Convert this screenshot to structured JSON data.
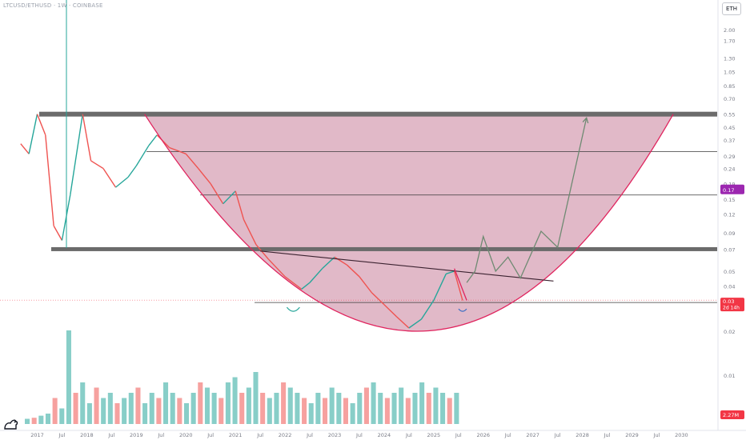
{
  "header": {
    "symbol_line": "LTCUSD/ETHUSD · 1W · COINBASE",
    "currency_button": "ETH"
  },
  "colors": {
    "bull": "#26a69a",
    "bear": "#ef5350",
    "fill": "#c9809a",
    "curve": "#e0245e",
    "grid_line": "#3a3a3a",
    "level_band": "#6b6b6b",
    "projection": "#6e8a72",
    "current_tag": "#f23645",
    "accent_tag": "#9c27b0",
    "axis_text": "#787b86"
  },
  "chart_data": {
    "type": "line",
    "scale": "log",
    "y_ticks": [
      "2.00",
      "1.70",
      "1.30",
      "1.05",
      "0.85",
      "0.70",
      "0.55",
      "0.45",
      "0.37",
      "0.29",
      "0.24",
      "0.19",
      "0.15",
      "0.12",
      "0.09",
      "0.07",
      "0.05",
      "0.04",
      "0.03",
      "0.02",
      "0.01"
    ],
    "x_ticks": [
      "2017",
      "Jul",
      "2018",
      "Jul",
      "2019",
      "Jul",
      "2020",
      "Jul",
      "2021",
      "Jul",
      "2022",
      "Jul",
      "2023",
      "Jul",
      "2024",
      "Jul",
      "2025",
      "Jul",
      "2026",
      "Jul",
      "2027",
      "Jul",
      "2028",
      "Jul",
      "2029",
      "Jul",
      "2030"
    ],
    "current_price_label": "0.03",
    "countdown_label": "2d 14h",
    "accent_price_label": "0.17",
    "volume_label": "2.27M",
    "horizontal_levels": [
      0.55,
      0.31,
      0.16,
      0.07,
      0.031
    ],
    "price_path": [
      [
        "2016-09",
        0.35
      ],
      [
        "2016-11",
        0.3
      ],
      [
        "2017-01",
        0.55
      ],
      [
        "2017-03",
        0.4
      ],
      [
        "2017-05",
        0.1
      ],
      [
        "2017-07",
        0.08
      ],
      [
        "2017-09",
        0.16
      ],
      [
        "2017-12",
        0.55
      ],
      [
        "2018-02",
        0.27
      ],
      [
        "2018-05",
        0.24
      ],
      [
        "2018-08",
        0.18
      ],
      [
        "2018-11",
        0.21
      ],
      [
        "2019-01",
        0.25
      ],
      [
        "2019-04",
        0.34
      ],
      [
        "2019-06",
        0.4
      ],
      [
        "2019-09",
        0.33
      ],
      [
        "2020-01",
        0.3
      ],
      [
        "2020-04",
        0.24
      ],
      [
        "2020-07",
        0.19
      ],
      [
        "2020-10",
        0.14
      ],
      [
        "2021-01",
        0.17
      ],
      [
        "2021-03",
        0.11
      ],
      [
        "2021-06",
        0.075
      ],
      [
        "2021-09",
        0.06
      ],
      [
        "2022-01",
        0.046
      ],
      [
        "2022-05",
        0.038
      ],
      [
        "2022-07",
        0.042
      ],
      [
        "2022-10",
        0.052
      ],
      [
        "2023-01",
        0.062
      ],
      [
        "2023-04",
        0.055
      ],
      [
        "2023-07",
        0.046
      ],
      [
        "2023-10",
        0.036
      ],
      [
        "2024-01",
        0.03
      ],
      [
        "2024-04",
        0.025
      ],
      [
        "2024-07",
        0.021
      ],
      [
        "2024-10",
        0.024
      ],
      [
        "2025-01",
        0.032
      ],
      [
        "2025-04",
        0.048
      ],
      [
        "2025-06",
        0.05
      ],
      [
        "2025-08",
        0.032
      ]
    ],
    "projection_path": [
      [
        "2025-09",
        0.042
      ],
      [
        "2025-11",
        0.05
      ],
      [
        "2026-01",
        0.085
      ],
      [
        "2026-04",
        0.05
      ],
      [
        "2026-07",
        0.062
      ],
      [
        "2026-10",
        0.045
      ],
      [
        "2027-03",
        0.092
      ],
      [
        "2027-07",
        0.072
      ],
      [
        "2028-02",
        0.52
      ]
    ],
    "arrow_target": [
      "2028-02",
      0.52
    ],
    "trendline": [
      [
        "2021-07",
        0.068
      ],
      [
        "2027-06",
        0.043
      ]
    ],
    "bowl_curve": {
      "left": [
        "2019-03",
        0.55
      ],
      "bottom": [
        "2024-09",
        0.02
      ],
      "right": [
        "2029-11",
        0.55
      ]
    },
    "volume": "relative bar heights 0-1",
    "volume_series": [
      0.05,
      0.06,
      0.08,
      0.1,
      0.25,
      0.15,
      0.9,
      0.3,
      0.4,
      0.2,
      0.35,
      0.25,
      0.3,
      0.2,
      0.25,
      0.3,
      0.35,
      0.2,
      0.3,
      0.25,
      0.4,
      0.3,
      0.25,
      0.2,
      0.3,
      0.4,
      0.35,
      0.3,
      0.25,
      0.4,
      0.45,
      0.3,
      0.35,
      0.5,
      0.3,
      0.25,
      0.3,
      0.4,
      0.35,
      0.3,
      0.25,
      0.2,
      0.3,
      0.25,
      0.35,
      0.3,
      0.25,
      0.2,
      0.3,
      0.35,
      0.4,
      0.3,
      0.25,
      0.3,
      0.35,
      0.25,
      0.3,
      0.4,
      0.3,
      0.35,
      0.3,
      0.25,
      0.3
    ]
  }
}
